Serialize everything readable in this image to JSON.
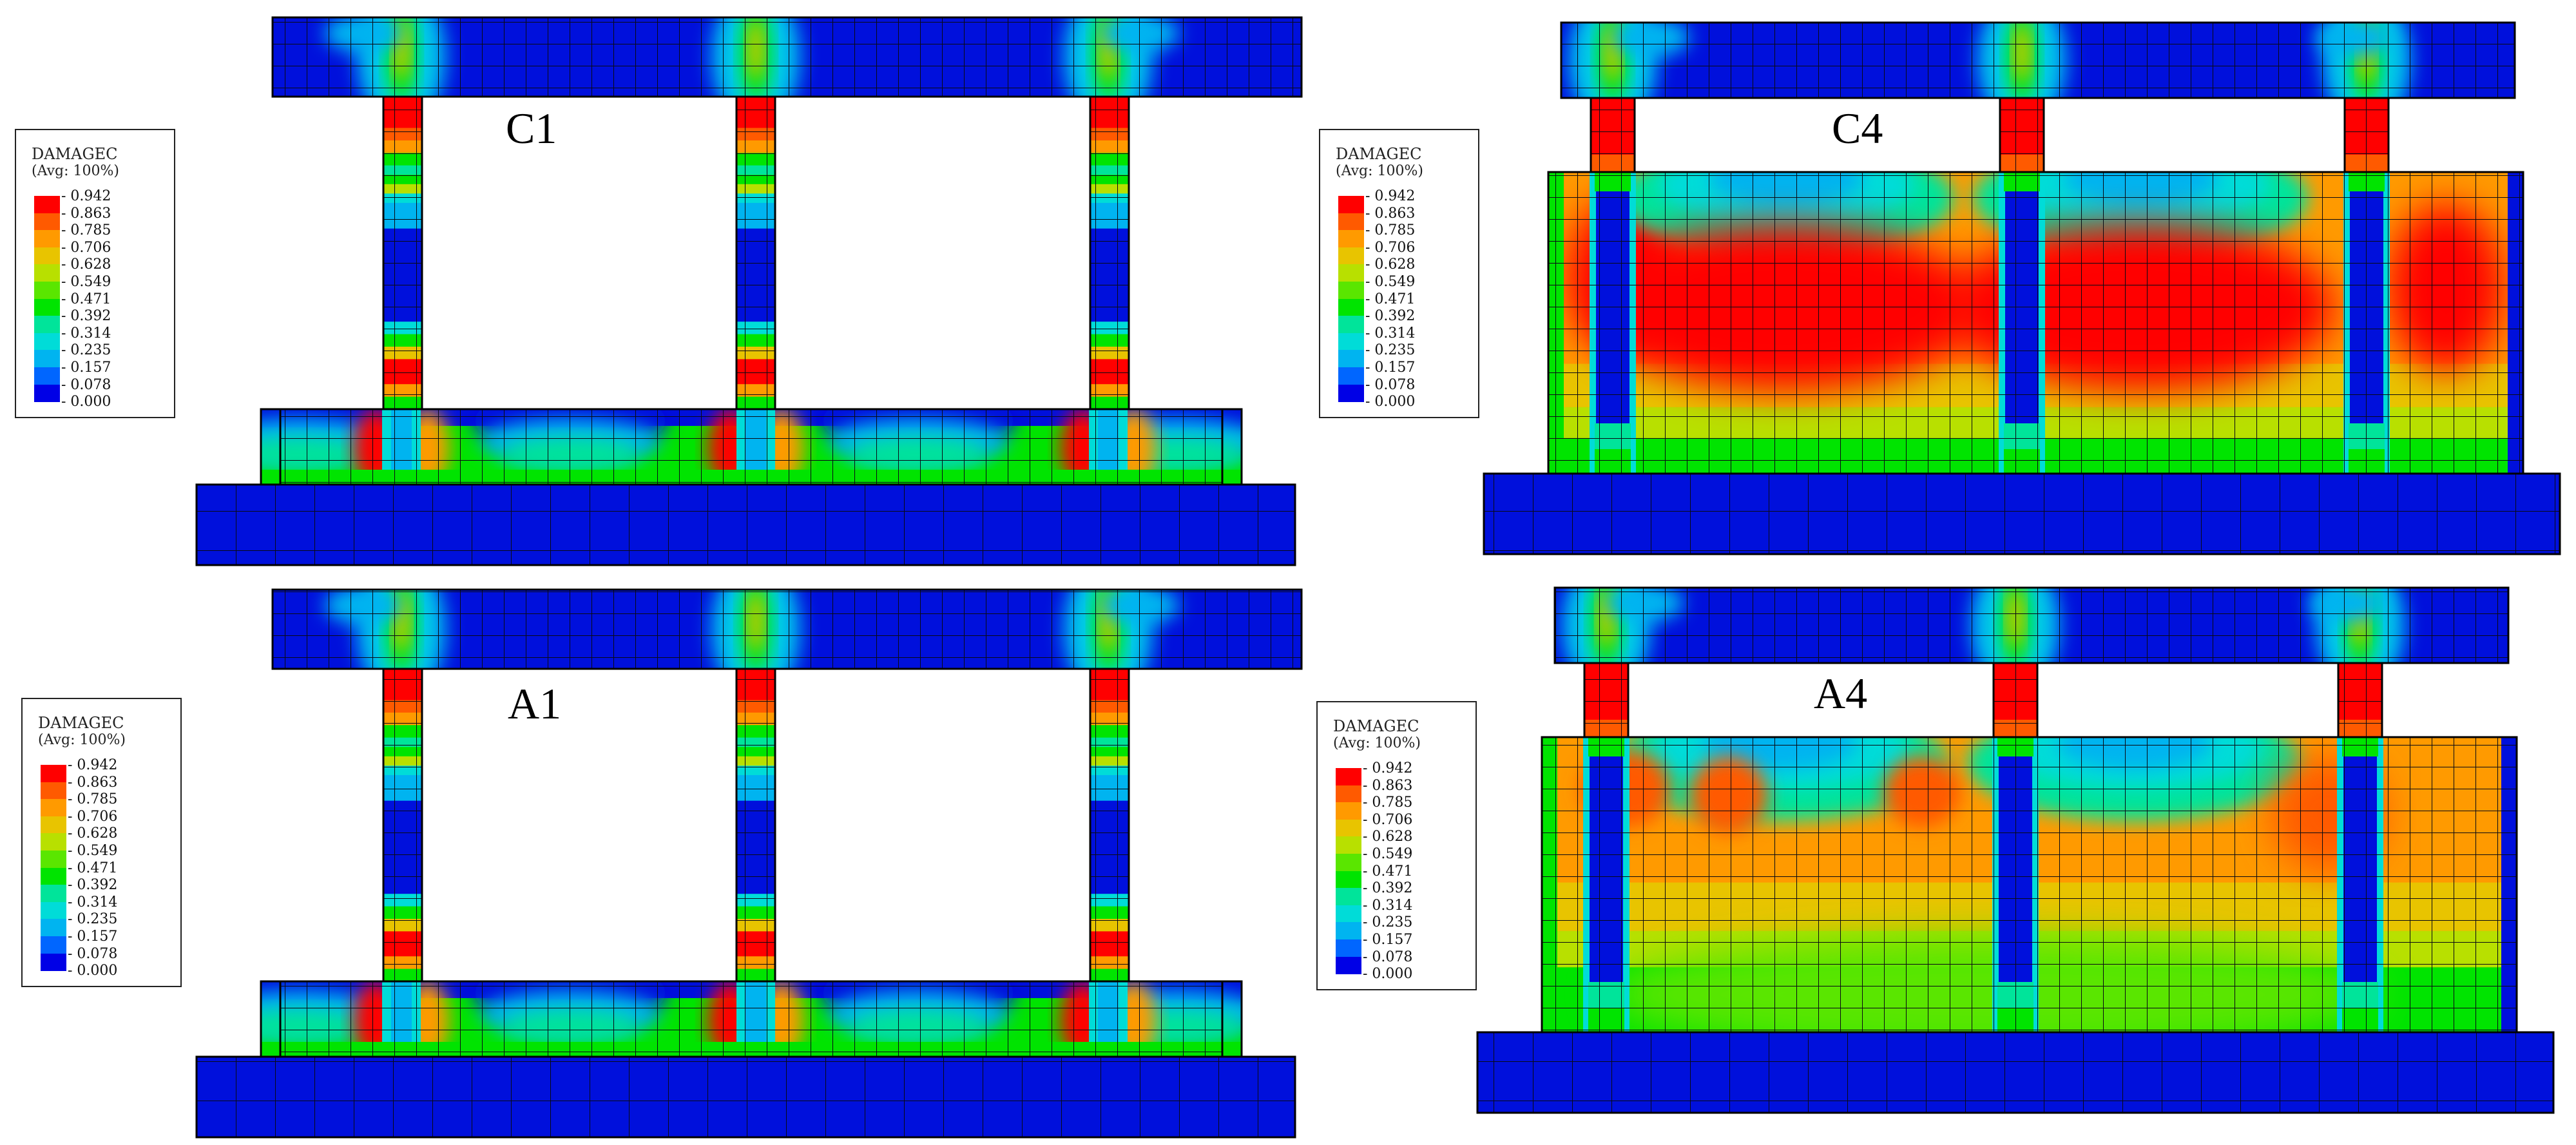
{
  "panels": [
    {
      "label": "C1",
      "variant": "frame",
      "mode": "c"
    },
    {
      "label": "C4",
      "variant": "infill",
      "mode": "c"
    },
    {
      "label": "A1",
      "variant": "frame",
      "mode": "a"
    },
    {
      "label": "A4",
      "variant": "infill",
      "mode": "a"
    }
  ],
  "legend": {
    "title": "DAMAGEC",
    "subtitle": "(Avg: 100%)",
    "values": [
      "0.942",
      "0.863",
      "0.785",
      "0.706",
      "0.628",
      "0.549",
      "0.471",
      "0.392",
      "0.314",
      "0.235",
      "0.157",
      "0.078",
      "0.000"
    ],
    "colors": [
      "#ff0000",
      "#ff5a00",
      "#ff9a00",
      "#e8c400",
      "#b8e000",
      "#5ae600",
      "#00e400",
      "#00e49a",
      "#00dcd8",
      "#00b4f0",
      "#0066ff",
      "#0000e6"
    ]
  },
  "palette": {
    "blue": "#0010dc",
    "mesh": "#0a0a14"
  }
}
